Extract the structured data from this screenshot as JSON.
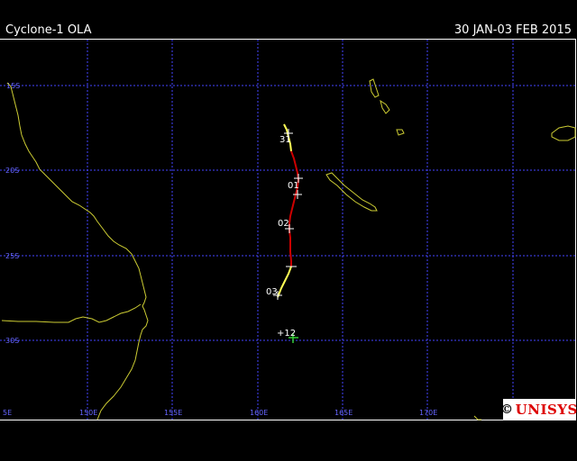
{
  "header": {
    "title": "Cyclone-1 OLA",
    "date_range": "30 JAN-03 FEB 2015"
  },
  "map": {
    "lat_labels": [
      "15S",
      "20S",
      "25S",
      "30S"
    ],
    "lon_labels": [
      "5E",
      "150E",
      "155E",
      "160E",
      "165E",
      "170E"
    ],
    "grid_color": "#4444ff",
    "coast_color": "#cccc33"
  },
  "track": {
    "labels": [
      "31",
      "01",
      "02",
      "03",
      "+12"
    ],
    "colors": {
      "tropical_storm": "#ffff55",
      "cyclone": "#cc0000",
      "forecast": "#33cc33"
    }
  },
  "logo": {
    "symbol": "©",
    "text": "UNISYS"
  }
}
